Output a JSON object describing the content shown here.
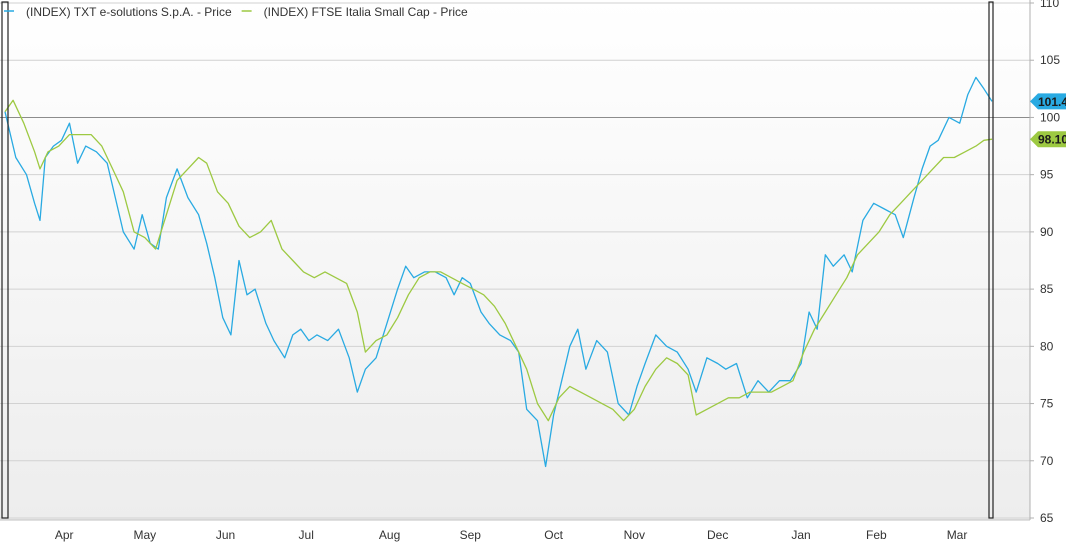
{
  "chart_data": {
    "type": "line",
    "legend_position": "top-left",
    "grid": true,
    "ylim": [
      65,
      110
    ],
    "y_ticks": [
      65,
      70,
      75,
      80,
      85,
      90,
      95,
      100,
      105,
      110
    ],
    "y_axis_side": "right",
    "reference_line": 100,
    "x_range": [
      "2023-03-21",
      "2024-03-22"
    ],
    "x_ticks": [
      {
        "label": "Apr",
        "date": "2023-04-12"
      },
      {
        "label": "May",
        "date": "2023-05-12"
      },
      {
        "label": "Jun",
        "date": "2023-06-11"
      },
      {
        "label": "Jul",
        "date": "2023-07-11"
      },
      {
        "label": "Aug",
        "date": "2023-08-11"
      },
      {
        "label": "Sep",
        "date": "2023-09-10"
      },
      {
        "label": "Oct",
        "date": "2023-10-11"
      },
      {
        "label": "Nov",
        "date": "2023-11-10"
      },
      {
        "label": "Dec",
        "date": "2023-12-11"
      },
      {
        "label": "Jan",
        "date": "2024-01-11"
      },
      {
        "label": "Feb",
        "date": "2024-02-08"
      },
      {
        "label": "Mar",
        "date": "2024-03-09"
      }
    ],
    "series": [
      {
        "name": "(INDEX) TXT e-solutions S.p.A. - Price",
        "color": "#29aae2",
        "end_label": "101.4",
        "points": [
          [
            "2023-03-21",
            100.5
          ],
          [
            "2023-03-25",
            96.5
          ],
          [
            "2023-03-29",
            95.0
          ],
          [
            "2023-04-01",
            92.5
          ],
          [
            "2023-04-03",
            91.0
          ],
          [
            "2023-04-05",
            96.5
          ],
          [
            "2023-04-08",
            97.5
          ],
          [
            "2023-04-11",
            98.0
          ],
          [
            "2023-04-14",
            99.5
          ],
          [
            "2023-04-17",
            96.0
          ],
          [
            "2023-04-20",
            97.5
          ],
          [
            "2023-04-24",
            97.0
          ],
          [
            "2023-04-28",
            96.0
          ],
          [
            "2023-05-01",
            93.0
          ],
          [
            "2023-05-04",
            90.0
          ],
          [
            "2023-05-08",
            88.5
          ],
          [
            "2023-05-11",
            91.5
          ],
          [
            "2023-05-14",
            89.0
          ],
          [
            "2023-05-17",
            88.5
          ],
          [
            "2023-05-20",
            93.0
          ],
          [
            "2023-05-24",
            95.5
          ],
          [
            "2023-05-28",
            93.0
          ],
          [
            "2023-06-01",
            91.5
          ],
          [
            "2023-06-04",
            89.0
          ],
          [
            "2023-06-07",
            86.0
          ],
          [
            "2023-06-10",
            82.5
          ],
          [
            "2023-06-13",
            81.0
          ],
          [
            "2023-06-16",
            87.5
          ],
          [
            "2023-06-19",
            84.5
          ],
          [
            "2023-06-22",
            85.0
          ],
          [
            "2023-06-26",
            82.0
          ],
          [
            "2023-06-29",
            80.5
          ],
          [
            "2023-07-03",
            79.0
          ],
          [
            "2023-07-06",
            81.0
          ],
          [
            "2023-07-09",
            81.5
          ],
          [
            "2023-07-12",
            80.5
          ],
          [
            "2023-07-15",
            81.0
          ],
          [
            "2023-07-19",
            80.5
          ],
          [
            "2023-07-23",
            81.5
          ],
          [
            "2023-07-27",
            79.0
          ],
          [
            "2023-07-30",
            76.0
          ],
          [
            "2023-08-02",
            78.0
          ],
          [
            "2023-08-06",
            79.0
          ],
          [
            "2023-08-10",
            82.0
          ],
          [
            "2023-08-14",
            85.0
          ],
          [
            "2023-08-17",
            87.0
          ],
          [
            "2023-08-20",
            86.0
          ],
          [
            "2023-08-24",
            86.5
          ],
          [
            "2023-08-28",
            86.5
          ],
          [
            "2023-09-01",
            86.0
          ],
          [
            "2023-09-04",
            84.5
          ],
          [
            "2023-09-07",
            86.0
          ],
          [
            "2023-09-10",
            85.5
          ],
          [
            "2023-09-14",
            83.0
          ],
          [
            "2023-09-17",
            82.0
          ],
          [
            "2023-09-21",
            81.0
          ],
          [
            "2023-09-25",
            80.5
          ],
          [
            "2023-09-28",
            79.5
          ],
          [
            "2023-10-01",
            74.5
          ],
          [
            "2023-10-05",
            73.5
          ],
          [
            "2023-10-08",
            69.5
          ],
          [
            "2023-10-11",
            74.0
          ],
          [
            "2023-10-14",
            77.0
          ],
          [
            "2023-10-17",
            80.0
          ],
          [
            "2023-10-20",
            81.5
          ],
          [
            "2023-10-23",
            78.0
          ],
          [
            "2023-10-27",
            80.5
          ],
          [
            "2023-10-31",
            79.5
          ],
          [
            "2023-11-04",
            75.0
          ],
          [
            "2023-11-08",
            74.0
          ],
          [
            "2023-11-11",
            76.5
          ],
          [
            "2023-11-14",
            78.5
          ],
          [
            "2023-11-18",
            81.0
          ],
          [
            "2023-11-22",
            80.0
          ],
          [
            "2023-11-26",
            79.5
          ],
          [
            "2023-11-30",
            78.0
          ],
          [
            "2023-12-03",
            76.0
          ],
          [
            "2023-12-07",
            79.0
          ],
          [
            "2023-12-11",
            78.5
          ],
          [
            "2023-12-14",
            78.0
          ],
          [
            "2023-12-18",
            78.5
          ],
          [
            "2023-12-22",
            75.5
          ],
          [
            "2023-12-26",
            77.0
          ],
          [
            "2023-12-30",
            76.0
          ],
          [
            "2024-01-03",
            77.0
          ],
          [
            "2024-01-07",
            77.0
          ],
          [
            "2024-01-11",
            78.5
          ],
          [
            "2024-01-14",
            83.0
          ],
          [
            "2024-01-17",
            81.5
          ],
          [
            "2024-01-20",
            88.0
          ],
          [
            "2024-01-23",
            87.0
          ],
          [
            "2024-01-27",
            88.0
          ],
          [
            "2024-01-30",
            86.5
          ],
          [
            "2024-02-03",
            91.0
          ],
          [
            "2024-02-07",
            92.5
          ],
          [
            "2024-02-11",
            92.0
          ],
          [
            "2024-02-15",
            91.5
          ],
          [
            "2024-02-18",
            89.5
          ],
          [
            "2024-02-22",
            93.0
          ],
          [
            "2024-02-25",
            95.5
          ],
          [
            "2024-02-28",
            97.5
          ],
          [
            "2024-03-02",
            98.0
          ],
          [
            "2024-03-06",
            100.0
          ],
          [
            "2024-03-10",
            99.5
          ],
          [
            "2024-03-13",
            102.0
          ],
          [
            "2024-03-16",
            103.5
          ],
          [
            "2024-03-19",
            102.5
          ],
          [
            "2024-03-22",
            101.4
          ]
        ]
      },
      {
        "name": "(INDEX) FTSE Italia Small Cap - Price",
        "color": "#9dc942",
        "end_label": "98.10",
        "points": [
          [
            "2023-03-21",
            100.5
          ],
          [
            "2023-03-24",
            101.5
          ],
          [
            "2023-03-28",
            99.5
          ],
          [
            "2023-04-01",
            97.0
          ],
          [
            "2023-04-03",
            95.5
          ],
          [
            "2023-04-06",
            97.0
          ],
          [
            "2023-04-10",
            97.5
          ],
          [
            "2023-04-14",
            98.5
          ],
          [
            "2023-04-18",
            98.5
          ],
          [
            "2023-04-22",
            98.5
          ],
          [
            "2023-04-26",
            97.5
          ],
          [
            "2023-04-30",
            95.5
          ],
          [
            "2023-05-04",
            93.5
          ],
          [
            "2023-05-08",
            90.0
          ],
          [
            "2023-05-12",
            89.5
          ],
          [
            "2023-05-16",
            88.5
          ],
          [
            "2023-05-20",
            91.5
          ],
          [
            "2023-05-24",
            94.5
          ],
          [
            "2023-05-28",
            95.5
          ],
          [
            "2023-06-01",
            96.5
          ],
          [
            "2023-06-04",
            96.0
          ],
          [
            "2023-06-08",
            93.5
          ],
          [
            "2023-06-12",
            92.5
          ],
          [
            "2023-06-16",
            90.5
          ],
          [
            "2023-06-20",
            89.5
          ],
          [
            "2023-06-24",
            90.0
          ],
          [
            "2023-06-28",
            91.0
          ],
          [
            "2023-07-02",
            88.5
          ],
          [
            "2023-07-06",
            87.5
          ],
          [
            "2023-07-10",
            86.5
          ],
          [
            "2023-07-14",
            86.0
          ],
          [
            "2023-07-18",
            86.5
          ],
          [
            "2023-07-22",
            86.0
          ],
          [
            "2023-07-26",
            85.5
          ],
          [
            "2023-07-30",
            83.0
          ],
          [
            "2023-08-02",
            79.5
          ],
          [
            "2023-08-06",
            80.5
          ],
          [
            "2023-08-10",
            81.0
          ],
          [
            "2023-08-14",
            82.5
          ],
          [
            "2023-08-18",
            84.5
          ],
          [
            "2023-08-22",
            86.0
          ],
          [
            "2023-08-26",
            86.5
          ],
          [
            "2023-08-30",
            86.5
          ],
          [
            "2023-09-03",
            86.0
          ],
          [
            "2023-09-07",
            85.5
          ],
          [
            "2023-09-11",
            85.0
          ],
          [
            "2023-09-15",
            84.5
          ],
          [
            "2023-09-19",
            83.5
          ],
          [
            "2023-09-23",
            82.0
          ],
          [
            "2023-09-27",
            80.0
          ],
          [
            "2023-10-01",
            78.0
          ],
          [
            "2023-10-05",
            75.0
          ],
          [
            "2023-10-09",
            73.5
          ],
          [
            "2023-10-13",
            75.5
          ],
          [
            "2023-10-17",
            76.5
          ],
          [
            "2023-10-21",
            76.0
          ],
          [
            "2023-10-25",
            75.5
          ],
          [
            "2023-10-29",
            75.0
          ],
          [
            "2023-11-02",
            74.5
          ],
          [
            "2023-11-06",
            73.5
          ],
          [
            "2023-11-10",
            74.5
          ],
          [
            "2023-11-14",
            76.5
          ],
          [
            "2023-11-18",
            78.0
          ],
          [
            "2023-11-22",
            79.0
          ],
          [
            "2023-11-26",
            78.5
          ],
          [
            "2023-11-30",
            77.5
          ],
          [
            "2023-12-03",
            74.0
          ],
          [
            "2023-12-07",
            74.5
          ],
          [
            "2023-12-11",
            75.0
          ],
          [
            "2023-12-15",
            75.5
          ],
          [
            "2023-12-19",
            75.5
          ],
          [
            "2023-12-23",
            76.0
          ],
          [
            "2023-12-27",
            76.0
          ],
          [
            "2023-12-31",
            76.0
          ],
          [
            "2024-01-04",
            76.5
          ],
          [
            "2024-01-08",
            77.0
          ],
          [
            "2024-01-12",
            79.5
          ],
          [
            "2024-01-16",
            81.5
          ],
          [
            "2024-01-20",
            83.0
          ],
          [
            "2024-01-24",
            84.5
          ],
          [
            "2024-01-28",
            86.0
          ],
          [
            "2024-02-01",
            88.0
          ],
          [
            "2024-02-05",
            89.0
          ],
          [
            "2024-02-09",
            90.0
          ],
          [
            "2024-02-13",
            91.5
          ],
          [
            "2024-02-17",
            92.5
          ],
          [
            "2024-02-21",
            93.5
          ],
          [
            "2024-02-25",
            94.5
          ],
          [
            "2024-02-29",
            95.5
          ],
          [
            "2024-03-04",
            96.5
          ],
          [
            "2024-03-08",
            96.5
          ],
          [
            "2024-03-12",
            97.0
          ],
          [
            "2024-03-16",
            97.5
          ],
          [
            "2024-03-19",
            98.0
          ],
          [
            "2024-03-22",
            98.1
          ]
        ]
      }
    ]
  }
}
